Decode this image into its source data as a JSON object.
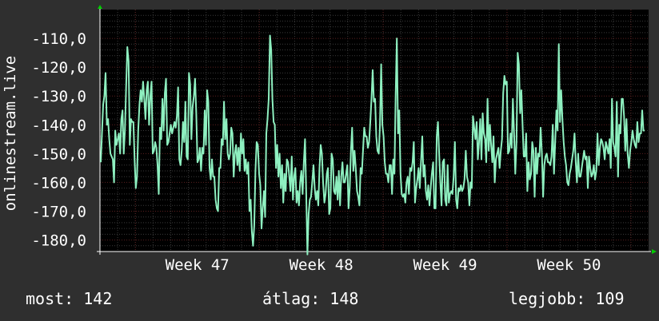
{
  "chart_data": {
    "type": "line",
    "title": "",
    "ylabel": "onlinestream.live",
    "ylim": [
      -184,
      -100
    ],
    "y_ticks": [
      -110,
      -120,
      -130,
      -140,
      -150,
      -160,
      -170,
      -180
    ],
    "y_tick_labels": [
      "-110,0",
      "-120,0",
      "-130,0",
      "-140,0",
      "-150,0",
      "-160,0",
      "-170,0",
      "-180,0"
    ],
    "x_tick_labels": [
      "Week 47",
      "Week 48",
      "Week 49",
      "Week 50"
    ],
    "grid": true,
    "colors": {
      "background": "#2f2f2f",
      "plot_background": "#000000",
      "line": "#8ef0c0",
      "axis_arrow": "#00cc00",
      "grid_major": "#5a1f1f",
      "grid_minor": "#3a3a3a"
    },
    "series": [
      {
        "values": [
          -153,
          -143,
          -133,
          -130,
          -122,
          -140,
          -138,
          -145,
          -150,
          -151,
          -152,
          -160,
          -142,
          -147,
          -145,
          -143,
          -150,
          -138,
          -135,
          -150,
          -142,
          -127,
          -113,
          -118,
          -147,
          -138,
          -139,
          -139,
          -152,
          -162,
          -158,
          -142,
          -133,
          -128,
          -132,
          -125,
          -131,
          -138,
          -128,
          -125,
          -140,
          -130,
          -125,
          -150,
          -149,
          -146,
          -148,
          -154,
          -164,
          -141,
          -145,
          -131,
          -142,
          -129,
          -124,
          -147,
          -146,
          -143,
          -140,
          -143,
          -141,
          -139,
          -141,
          -137,
          -127,
          -152,
          -154,
          -149,
          -139,
          -146,
          -132,
          -151,
          -152,
          -122,
          -126,
          -145,
          -134,
          -130,
          -124,
          -136,
          -153,
          -152,
          -148,
          -156,
          -148,
          -150,
          -135,
          -147,
          -128,
          -132,
          -155,
          -159,
          -152,
          -158,
          -158,
          -166,
          -169,
          -170,
          -155,
          -155,
          -145,
          -147,
          -132,
          -145,
          -138,
          -150,
          -152,
          -150,
          -141,
          -143,
          -158,
          -150,
          -147,
          -154,
          -148,
          -156,
          -143,
          -150,
          -145,
          -156,
          -152,
          -157,
          -153,
          -170,
          -166,
          -177,
          -182,
          -175,
          -156,
          -146,
          -147,
          -157,
          -161,
          -176,
          -169,
          -163,
          -172,
          -143,
          -138,
          -131,
          -109,
          -114,
          -131,
          -139,
          -140,
          -155,
          -147,
          -158,
          -150,
          -162,
          -154,
          -167,
          -157,
          -163,
          -152,
          -153,
          -158,
          -163,
          -151,
          -166,
          -158,
          -155,
          -167,
          -163,
          -168,
          -160,
          -156,
          -164,
          -153,
          -145,
          -164,
          -185,
          -171,
          -166,
          -165,
          -160,
          -154,
          -162,
          -166,
          -163,
          -168,
          -155,
          -147,
          -150,
          -160,
          -167,
          -164,
          -157,
          -155,
          -171,
          -169,
          -150,
          -152,
          -163,
          -164,
          -158,
          -166,
          -156,
          -168,
          -158,
          -153,
          -160,
          -160,
          -157,
          -154,
          -169,
          -162,
          -149,
          -141,
          -156,
          -149,
          -155,
          -163,
          -165,
          -168,
          -155,
          -157,
          -149,
          -141,
          -144,
          -144,
          -148,
          -146,
          -139,
          -131,
          -121,
          -132,
          -131,
          -144,
          -149,
          -150,
          -140,
          -119,
          -140,
          -144,
          -153,
          -157,
          -157,
          -160,
          -154,
          -154,
          -164,
          -152,
          -157,
          -130,
          -110,
          -143,
          -135,
          -157,
          -164,
          -165,
          -164,
          -167,
          -160,
          -158,
          -164,
          -155,
          -156,
          -153,
          -146,
          -167,
          -162,
          -159,
          -155,
          -162,
          -153,
          -144,
          -158,
          -154,
          -163,
          -166,
          -161,
          -168,
          -162,
          -157,
          -153,
          -169,
          -169,
          -144,
          -139,
          -150,
          -160,
          -168,
          -153,
          -152,
          -166,
          -168,
          -154,
          -167,
          -164,
          -163,
          -164,
          -158,
          -146,
          -166,
          -169,
          -162,
          -163,
          -161,
          -163,
          -162,
          -159,
          -149,
          -158,
          -160,
          -168,
          -160,
          -162,
          -137,
          -141,
          -145,
          -139,
          -152,
          -146,
          -138,
          -152,
          -136,
          -143,
          -145,
          -153,
          -131,
          -149,
          -140,
          -147,
          -153,
          -144,
          -160,
          -152,
          -150,
          -148,
          -155,
          -149,
          -145,
          -129,
          -123,
          -126,
          -125,
          -150,
          -149,
          -143,
          -148,
          -131,
          -143,
          -157,
          -146,
          -115,
          -119,
          -136,
          -128,
          -140,
          -151,
          -151,
          -143,
          -163,
          -153,
          -159,
          -157,
          -146,
          -149,
          -165,
          -148,
          -157,
          -150,
          -151,
          -141,
          -150,
          -165,
          -154,
          -151,
          -150,
          -153,
          -153,
          -154,
          -151,
          -140,
          -157,
          -146,
          -135,
          -142,
          -112,
          -139,
          -128,
          -138,
          -146,
          -151,
          -154,
          -160,
          -161,
          -157,
          -155,
          -152,
          -149,
          -143,
          -153,
          -160,
          -150,
          -158,
          -158,
          -155,
          -152,
          -149,
          -152,
          -151,
          -162,
          -151,
          -155,
          -158,
          -157,
          -154,
          -159,
          -156,
          -143,
          -154,
          -148,
          -145,
          -146,
          -148,
          -152,
          -146,
          -148,
          -150,
          -145,
          -155,
          -131,
          -146,
          -148,
          -151,
          -132,
          -158,
          -140,
          -143,
          -131,
          -131,
          -137,
          -149,
          -138,
          -150,
          -155,
          -149,
          -146,
          -142,
          -145,
          -147,
          -148,
          -139,
          -146,
          -143,
          -143,
          -135,
          -142,
          -142
        ]
      }
    ]
  },
  "stats": {
    "now": "most: 142",
    "avg": "átlag: 148",
    "best": "legjobb: 109"
  }
}
